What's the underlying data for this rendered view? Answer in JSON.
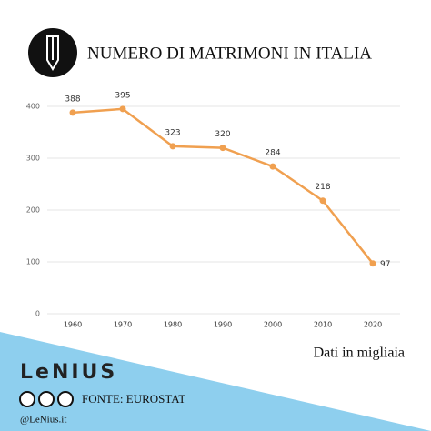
{
  "chart_data": {
    "type": "line",
    "title": "NUMERO DI MATRIMONI IN ITALIA",
    "categories": [
      "1960",
      "1970",
      "1980",
      "1990",
      "2000",
      "2010",
      "2020"
    ],
    "values": [
      388,
      395,
      323,
      320,
      284,
      218,
      97
    ],
    "color": "#f0a050",
    "ylim": [
      0,
      400
    ],
    "yticks": [
      0,
      100,
      200,
      300,
      400
    ],
    "grid": true,
    "note": "Dati in migliaia"
  },
  "footer": {
    "brand": "LeNIUS",
    "source": "FONTE: EUROSTAT",
    "handle": "@LeNius.it"
  }
}
